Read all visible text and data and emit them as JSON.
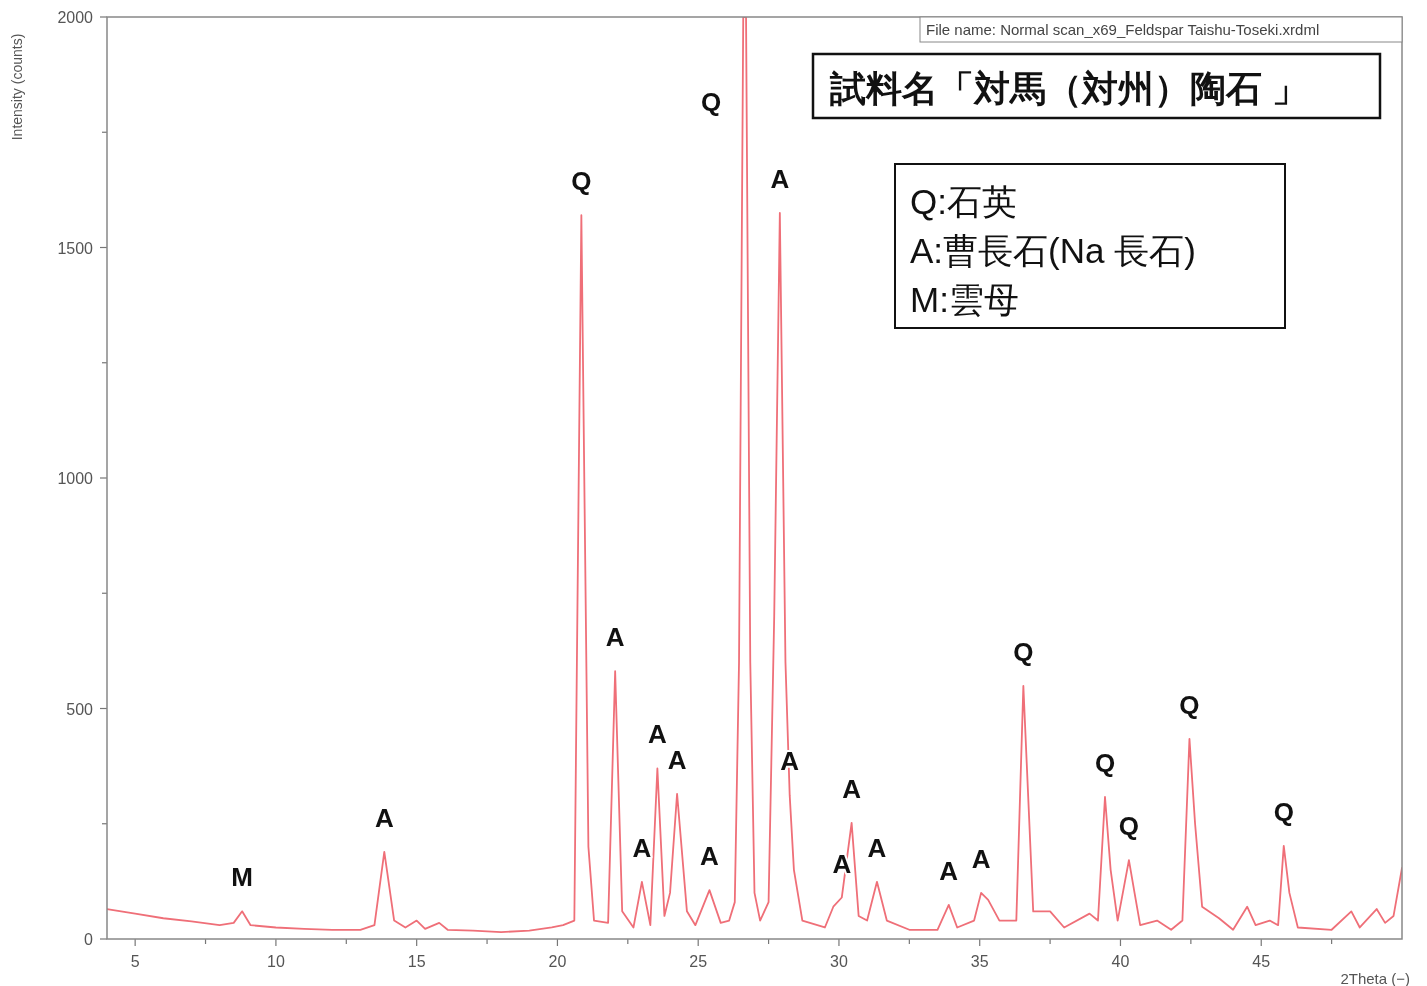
{
  "chart_data": {
    "type": "line",
    "title": "試料名「対馬（対州）陶石 」",
    "xlabel": "2Theta (−)",
    "ylabel": "Intensity (counts)",
    "xlim": [
      4,
      50
    ],
    "ylim": [
      0,
      2000
    ],
    "xticks": [
      5,
      {
        "value": 7.5,
        "label": null
      },
      10,
      {
        "value": 12.5,
        "label": null
      },
      15,
      {
        "value": 17.5,
        "label": null
      },
      20,
      {
        "value": 22.5,
        "label": null
      },
      25,
      {
        "value": 27.5,
        "label": null
      },
      30,
      {
        "value": 32.5,
        "label": null
      },
      35,
      {
        "value": 37.5,
        "label": null
      },
      40,
      {
        "value": 42.5,
        "label": null
      },
      45,
      {
        "value": 47.5,
        "label": null
      }
    ],
    "yticks": [
      0,
      {
        "value": 250,
        "label": null
      },
      500,
      {
        "value": 750,
        "label": null
      },
      1000,
      {
        "value": 1250,
        "label": null
      },
      1500,
      {
        "value": 1750,
        "label": null
      },
      2000
    ],
    "grid": false,
    "marker": "none",
    "line_style": "solid",
    "series": [
      {
        "color": "#ef6f78",
        "x": [
          4.0,
          4.5,
          5.0,
          6.0,
          7.0,
          8.0,
          8.5,
          8.8,
          9.1,
          10.0,
          11.0,
          12.0,
          13.0,
          13.5,
          13.85,
          14.2,
          14.6,
          15.0,
          15.3,
          15.8,
          16.1,
          17.0,
          18.0,
          19.0,
          19.8,
          20.2,
          20.6,
          20.85,
          21.1,
          21.3,
          21.8,
          22.05,
          22.3,
          22.7,
          23.0,
          23.3,
          23.55,
          23.8,
          24.0,
          24.25,
          24.6,
          24.9,
          25.4,
          25.8,
          26.1,
          26.3,
          26.45,
          26.6,
          26.7,
          26.85,
          27.0,
          27.2,
          27.5,
          27.7,
          27.9,
          28.1,
          28.25,
          28.4,
          28.7,
          29.5,
          29.8,
          30.1,
          30.45,
          30.7,
          31.0,
          31.35,
          31.7,
          32.5,
          33.5,
          33.9,
          34.2,
          34.8,
          35.05,
          35.3,
          35.7,
          36.3,
          36.55,
          36.9,
          37.5,
          38.0,
          38.9,
          39.2,
          39.45,
          39.65,
          39.9,
          40.3,
          40.5,
          40.7,
          41.3,
          41.8,
          42.2,
          42.45,
          42.65,
          42.9,
          43.5,
          44.0,
          44.5,
          44.8,
          45.3,
          45.6,
          45.8,
          46.0,
          46.3,
          47.5,
          48.2,
          48.5,
          49.1,
          49.4,
          49.7,
          50.0
        ],
        "values": [
          65,
          60,
          55,
          45,
          38,
          30,
          35,
          60,
          30,
          25,
          22,
          20,
          20,
          30,
          189,
          40,
          25,
          40,
          22,
          35,
          20,
          18,
          15,
          18,
          25,
          30,
          40,
          1570,
          200,
          40,
          35,
          581,
          60,
          25,
          124,
          30,
          370,
          50,
          100,
          315,
          60,
          30,
          106,
          35,
          40,
          80,
          600,
          2000,
          2000,
          600,
          100,
          40,
          80,
          700,
          1575,
          600,
          312,
          150,
          40,
          25,
          70,
          90,
          252,
          50,
          40,
          124,
          40,
          20,
          20,
          74,
          25,
          40,
          100,
          85,
          40,
          40,
          549,
          60,
          60,
          25,
          55,
          40,
          308,
          150,
          40,
          171,
          100,
          30,
          40,
          20,
          40,
          434,
          250,
          70,
          45,
          20,
          70,
          30,
          40,
          30,
          202,
          100,
          25,
          20,
          60,
          25,
          65,
          35,
          50,
          154
        ]
      }
    ],
    "annotations": [
      "File name: Normal scan_x69_Feldspar Taishu-Toseki.xrdml",
      "Q:石英",
      "A:曹長石(Na 長石)",
      "M:雲母",
      {
        "text": "M",
        "x": 8.8,
        "y": 60
      },
      {
        "text": "A",
        "x": 13.85,
        "y": 189
      },
      {
        "text": "Q",
        "x": 20.85,
        "y": 1570
      },
      {
        "text": "Q",
        "x": 26.6,
        "y": 2000
      },
      {
        "text": "A",
        "x": 27.9,
        "y": 1575
      },
      {
        "text": "A",
        "x": 22.05,
        "y": 581
      },
      {
        "text": "A",
        "x": 23.55,
        "y": 370
      },
      {
        "text": "A",
        "x": 24.25,
        "y": 315
      },
      {
        "text": "A",
        "x": 23.0,
        "y": 124
      },
      {
        "text": "A",
        "x": 25.4,
        "y": 106
      },
      {
        "text": "A",
        "x": 28.25,
        "y": 312
      },
      {
        "text": "A",
        "x": 30.45,
        "y": 252
      },
      {
        "text": "A",
        "x": 30.1,
        "y": 90
      },
      {
        "text": "A",
        "x": 31.35,
        "y": 124
      },
      {
        "text": "A",
        "x": 33.9,
        "y": 74
      },
      {
        "text": "A",
        "x": 35.05,
        "y": 100
      },
      {
        "text": "Q",
        "x": 36.55,
        "y": 549
      },
      {
        "text": "Q",
        "x": 39.45,
        "y": 308
      },
      {
        "text": "Q",
        "x": 40.3,
        "y": 171
      },
      {
        "text": "Q",
        "x": 42.45,
        "y": 434
      },
      {
        "text": "Q",
        "x": 45.8,
        "y": 202
      }
    ]
  }
}
